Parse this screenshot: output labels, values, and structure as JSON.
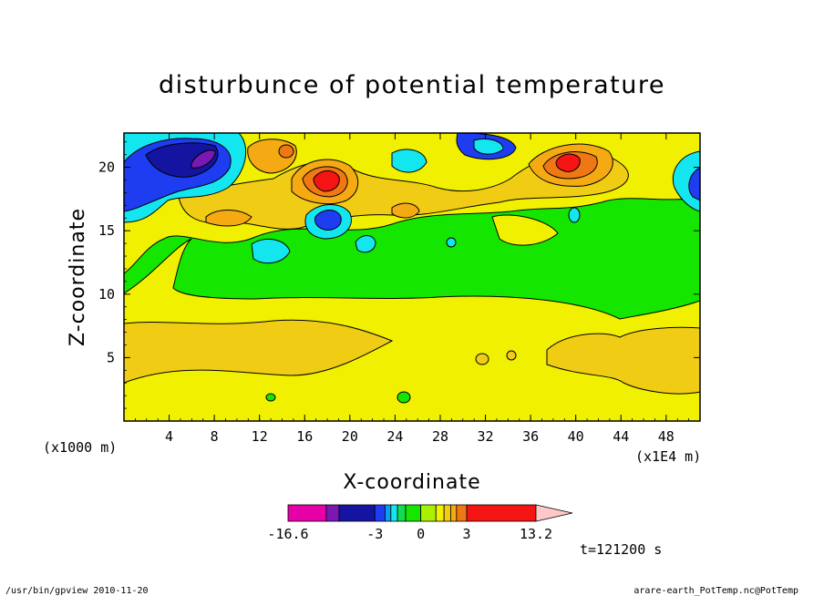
{
  "chart_data": {
    "type": "heatmap",
    "title": "disturbunce of potential temperature",
    "xlabel": "X-coordinate",
    "ylabel": "Z-coordinate",
    "x_unit_label": "(x1E4 m)",
    "y_unit_label": "(x1000 m)",
    "x_ticks": [
      "4",
      "8",
      "12",
      "16",
      "20",
      "24",
      "28",
      "32",
      "36",
      "40",
      "44",
      "48"
    ],
    "y_ticks": [
      "5",
      "10",
      "15",
      "20"
    ],
    "xlim": [
      0,
      51
    ],
    "ylim": [
      0,
      22.7
    ],
    "colorbar": {
      "labels": [
        "-16.6",
        "-3",
        "0",
        "3",
        "13.2"
      ],
      "min": -16.6,
      "max": 13.2,
      "levels": [
        -16.6,
        -9.6,
        -7.6,
        -3,
        -2,
        -1.5,
        -1,
        -0.5,
        0,
        0.5,
        1,
        1.5,
        2,
        3,
        13.2
      ],
      "colors": [
        "#e600a8",
        "#7a18b4",
        "#1414a0",
        "#1e3cf0",
        "#0aa0f0",
        "#14e6f0",
        "#14dc50",
        "#14e600",
        "#aaf000",
        "#f0f000",
        "#f0cd14",
        "#f5aa14",
        "#f07814",
        "#f51414",
        "#f07878",
        "#ffc8c8"
      ]
    },
    "time_label": "t=121200 s",
    "footer_left": "/usr/bin/gpview  2010-11-20",
    "footer_right": "arare-earth_PotTemp.nc@PotTemp",
    "regions": [
      {
        "name": "background",
        "level": "0 to 0.5",
        "color": "#f0f000"
      },
      {
        "name": "upper-green",
        "level": "-0.5 to 0",
        "color": "#14e600"
      },
      {
        "name": "lower-orange",
        "level": "0.5 to 1",
        "color": "#f0cd14"
      },
      {
        "name": "upper-warm-cores",
        "level": "3 to 13.2",
        "color": "#f51414"
      },
      {
        "name": "upper-cold-cores",
        "level": "-9.6 to -3",
        "color": "#1414a0"
      }
    ]
  }
}
